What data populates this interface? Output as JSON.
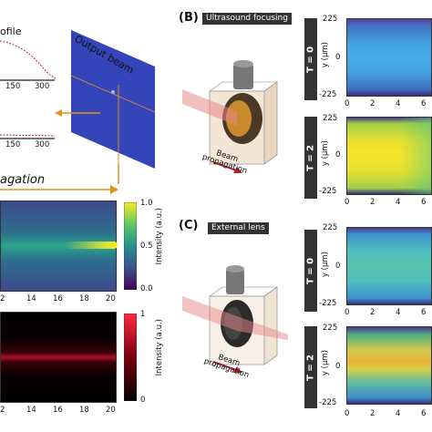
{
  "left": {
    "profile_word": "ofile",
    "ticks_top": [
      "150",
      "300"
    ],
    "ticks_mid": [
      "150",
      "300"
    ],
    "output_beam_label": "Output beam",
    "propagation_word": "agation",
    "heatmap1": {
      "x_ticks": [
        "2",
        "14",
        "16",
        "18",
        "20"
      ],
      "colorbar_ticks": [
        "1.0",
        "0.5",
        "0.0"
      ],
      "colorbar_label": "Intensity (a.u.)"
    },
    "heatmap2": {
      "x_ticks": [
        "2",
        "14",
        "16",
        "18",
        "20"
      ],
      "colorbar_ticks": [
        "1",
        "0"
      ],
      "colorbar_label": "Intensity (a.u.)"
    }
  },
  "panel_b": {
    "letter": "(B)",
    "title": "Ultrasound focusing",
    "beam_label_1": "Beam",
    "beam_label_2": "propagation",
    "rows": [
      {
        "t_label": "T = 0",
        "y_ticks": [
          "225",
          "0",
          "-225"
        ],
        "x_ticks": [
          "0",
          "2",
          "4",
          "6"
        ],
        "y_axis": "y (μm)"
      },
      {
        "t_label": "T = 2",
        "y_ticks": [
          "225",
          "0",
          "-225"
        ],
        "x_ticks": [
          "0",
          "2",
          "4",
          "6"
        ],
        "y_axis": "y (μm)"
      }
    ]
  },
  "panel_c": {
    "letter": "(C)",
    "title": "External lens",
    "beam_label_1": "Beam",
    "beam_label_2": "propagation",
    "rows": [
      {
        "t_label": "T = 0",
        "y_ticks": [
          "225",
          "0",
          "-225"
        ],
        "x_ticks": [
          "0",
          "2",
          "4",
          "6"
        ],
        "y_axis": "y (μm)"
      },
      {
        "t_label": "T = 2",
        "y_ticks": [
          "225",
          "0",
          "-225"
        ],
        "x_ticks": [
          "0",
          "2",
          "4",
          "6"
        ],
        "y_axis": "y (μm)"
      }
    ]
  },
  "colors": {
    "accent_orange": "#e0901a",
    "profile_red": "#b3262b",
    "beam_blue": "#3345b8"
  }
}
